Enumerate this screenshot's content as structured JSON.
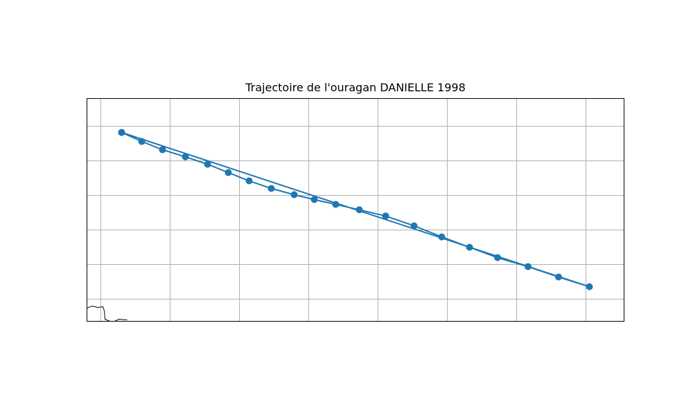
{
  "title": "Trajectoire de l'ouragan DANIELLE 1998",
  "colors": {
    "track": "#1f77b4",
    "grid": "#b0b0b0",
    "coastline": "#000000",
    "frame": "#000000",
    "background": "#ffffff"
  },
  "chart_data": {
    "type": "map-track",
    "title": "Trajectoire de l'ouragan DANIELLE 1998",
    "grid": true,
    "xlim": [
      0,
      1000
    ],
    "ylim": [
      0,
      1000
    ],
    "gridlines_x": [
      25.8,
      154.8,
      283.9,
      412.9,
      541.9,
      670.9,
      800.0,
      929.0
    ],
    "gridlines_y": [
      124.2,
      279.5,
      434.8,
      590.1,
      745.3,
      900.6
    ],
    "coastline": [
      [
        0,
        941.0
      ],
      [
        9.0,
        931.7
      ],
      [
        20.6,
        937.9
      ],
      [
        29.7,
        934.8
      ],
      [
        32.3,
        953.4
      ],
      [
        33.5,
        990.7
      ],
      [
        42.6,
        1000
      ]
    ],
    "coastline2": [
      [
        51.6,
        1000
      ],
      [
        59.4,
        990.7
      ],
      [
        74.8,
        993.8
      ]
    ],
    "track": [
      {
        "x": 64.5,
        "y": 152.2
      },
      {
        "x": 101.9,
        "y": 192.5
      },
      {
        "x": 140.6,
        "y": 229.8
      },
      {
        "x": 183.2,
        "y": 261.5
      },
      {
        "x": 224.5,
        "y": 295.0
      },
      {
        "x": 263.2,
        "y": 332.3
      },
      {
        "x": 301.9,
        "y": 369.6
      },
      {
        "x": 343.2,
        "y": 403.7
      },
      {
        "x": 385.8,
        "y": 431.7
      },
      {
        "x": 423.2,
        "y": 453.4
      },
      {
        "x": 463.2,
        "y": 475.2
      },
      {
        "x": 507.1,
        "y": 499.4
      },
      {
        "x": 556.1,
        "y": 527.3
      },
      {
        "x": 609.0,
        "y": 571.4
      },
      {
        "x": 660.6,
        "y": 621.1
      },
      {
        "x": 712.3,
        "y": 667.7
      },
      {
        "x": 764.5,
        "y": 714.3
      },
      {
        "x": 821.3,
        "y": 754.7
      },
      {
        "x": 878.1,
        "y": 801.2
      },
      {
        "x": 935.5,
        "y": 844.7
      },
      {
        "x": 64.5,
        "y": 152.2
      }
    ]
  }
}
